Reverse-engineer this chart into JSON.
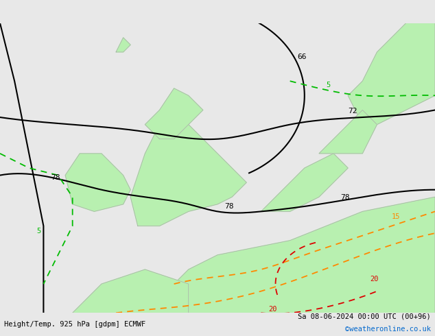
{
  "title_left": "Height/Temp. 925 hPa [gdpm] ECMWF",
  "title_right": "Sa 08-06-2024 00:00 UTC (00+96)",
  "credit": "©weatheronline.co.uk",
  "bg_color": "#e8e8e8",
  "land_color": "#b8f0b0",
  "figsize": [
    6.34,
    4.9
  ],
  "dpi": 100,
  "geop_labels": [
    "66",
    "72",
    "78",
    "78",
    "78"
  ],
  "temp_labels_green": [
    "5",
    "5"
  ],
  "temp_labels_orange": [
    "15"
  ],
  "temp_labels_red": [
    "20",
    "20"
  ]
}
